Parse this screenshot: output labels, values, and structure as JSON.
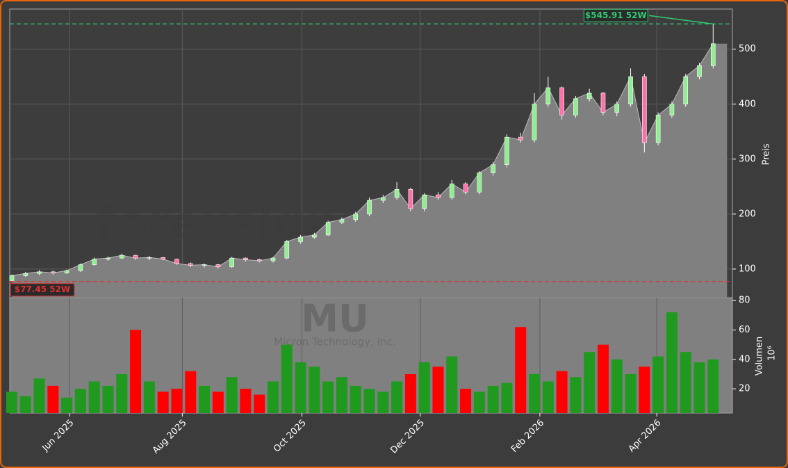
{
  "chart_data": {
    "type": "candlestick",
    "x": [
      0,
      1,
      2,
      3,
      4,
      5,
      6,
      7,
      8,
      9,
      10,
      11,
      12,
      13,
      14,
      15,
      16,
      17,
      18,
      19,
      20,
      21,
      22,
      23,
      24,
      25,
      26,
      27,
      28,
      29,
      30,
      31,
      32,
      33,
      34,
      35,
      36,
      37,
      38,
      39,
      40,
      41,
      42,
      43,
      44,
      45,
      46,
      47,
      48,
      49,
      50,
      51
    ],
    "open": [
      79,
      88,
      92,
      95,
      93,
      97,
      108,
      118,
      120,
      125,
      120,
      121,
      118,
      110,
      107,
      108,
      104,
      120,
      117,
      115,
      120,
      150,
      158,
      162,
      185,
      190,
      200,
      225,
      230,
      245,
      210,
      235,
      230,
      255,
      240,
      275,
      290,
      340,
      335,
      400,
      430,
      380,
      410,
      420,
      385,
      400,
      450,
      330,
      380,
      400,
      450,
      470
    ],
    "high": [
      90,
      95,
      98,
      97,
      99,
      110,
      121,
      123,
      128,
      126,
      124,
      122,
      119,
      112,
      110,
      109,
      122,
      121,
      119,
      122,
      153,
      162,
      166,
      188,
      194,
      204,
      230,
      235,
      258,
      248,
      238,
      240,
      262,
      258,
      278,
      295,
      345,
      348,
      420,
      450,
      432,
      415,
      428,
      422,
      405,
      465,
      455,
      385,
      405,
      455,
      475,
      545.91
    ],
    "low": [
      77.45,
      86,
      89,
      90,
      91,
      95,
      106,
      115,
      118,
      117,
      116,
      116,
      108,
      104,
      103,
      101,
      102,
      114,
      112,
      112,
      118,
      146,
      155,
      160,
      182,
      186,
      196,
      220,
      226,
      205,
      205,
      226,
      226,
      236,
      236,
      270,
      285,
      330,
      330,
      395,
      372,
      375,
      405,
      380,
      378,
      395,
      312,
      325,
      375,
      395,
      445,
      465
    ],
    "close": [
      88,
      92,
      95,
      93,
      97,
      108,
      118,
      120,
      125,
      120,
      121,
      118,
      110,
      107,
      108,
      104,
      120,
      117,
      115,
      120,
      150,
      158,
      162,
      185,
      190,
      200,
      225,
      230,
      245,
      210,
      235,
      230,
      255,
      240,
      275,
      290,
      340,
      335,
      400,
      430,
      380,
      410,
      420,
      385,
      400,
      450,
      330,
      380,
      400,
      450,
      470,
      510
    ],
    "volume": [
      18,
      15,
      27,
      22,
      14,
      20,
      25,
      22,
      30,
      60,
      25,
      18,
      20,
      32,
      22,
      18,
      28,
      20,
      16,
      25,
      50,
      38,
      35,
      25,
      28,
      22,
      20,
      18,
      25,
      30,
      38,
      35,
      42,
      20,
      18,
      22,
      24,
      62,
      30,
      25,
      32,
      28,
      45,
      50,
      40,
      30,
      35,
      42,
      72,
      45,
      38,
      40
    ],
    "up_color": "#90ee90",
    "down_color": "#ff6fa8",
    "volume_up_color": "#1f9a1f",
    "volume_down_color": "#ff0000",
    "area_color": "#808080",
    "xlim": [
      -0.15,
      52.4
    ],
    "xticks": [
      {
        "value": 4.2,
        "label": "Jun 2025"
      },
      {
        "value": 12.4,
        "label": "Aug 2025"
      },
      {
        "value": 21.1,
        "label": "Oct 2025"
      },
      {
        "value": 29.7,
        "label": "Dec 2025"
      },
      {
        "value": 38.4,
        "label": "Feb 2026"
      },
      {
        "value": 46.9,
        "label": "Apr 2026"
      }
    ],
    "ylim": [
      48,
      573
    ],
    "yticks": [
      100,
      200,
      300,
      400,
      500
    ],
    "ylabel": "Preis",
    "volume_ylim": [
      3.5,
      82
    ],
    "volume_yticks": [
      20,
      40,
      60,
      80
    ],
    "volume_label": "Volumen",
    "volume_unit": "10⁶",
    "grid": true,
    "annotations": [
      {
        "text": "$545.91 52W",
        "value": 545.91,
        "x": 51,
        "color": "#2ecc71"
      },
      {
        "text": "$77.45 52W",
        "value": 77.45,
        "x": 0,
        "color": "#e03030"
      }
    ],
    "watermark": "forexsignale.trade",
    "symbol": "MU",
    "company": "Micron Technology, Inc."
  }
}
